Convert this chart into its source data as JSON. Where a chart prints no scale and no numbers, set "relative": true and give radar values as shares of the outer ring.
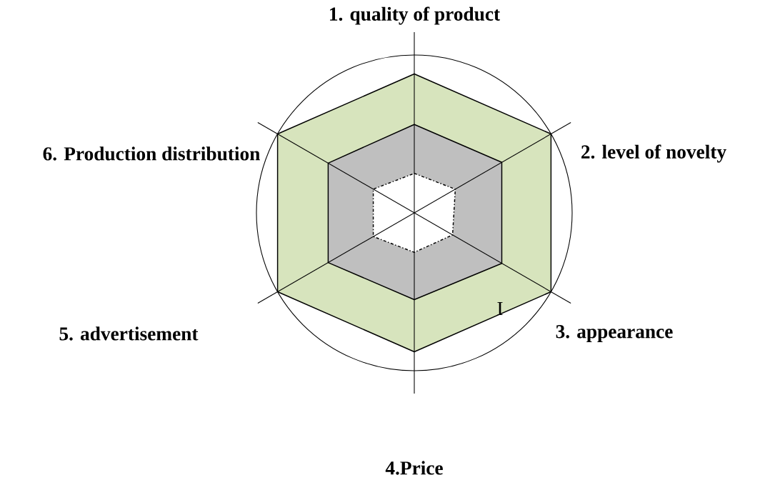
{
  "chart_data": {
    "type": "radar",
    "relative": true,
    "grid": true,
    "categories": [
      "1.  quality of  product",
      "2. level of novelty",
      "3. appearance",
      "4**.Price**",
      "5. advertisement",
      "6. Production distribution"
    ],
    "series": [
      {
        "color": "#d7e4bd",
        "line_style": "solid",
        "values": [
          0.88,
          1,
          1,
          0.88,
          1,
          1
        ]
      },
      {
        "color": "#bfbfbf",
        "line_style": "solid",
        "values": [
          0.56,
          0.64,
          0.64,
          0.55,
          0.63,
          0.63
        ]
      },
      {
        "color": "#ffffff",
        "line_style": "dashed",
        "values": [
          0.25,
          0.3,
          0.28,
          0.25,
          0.3,
          0.3
        ]
      }
    ],
    "annotations": [
      "I"
    ]
  }
}
